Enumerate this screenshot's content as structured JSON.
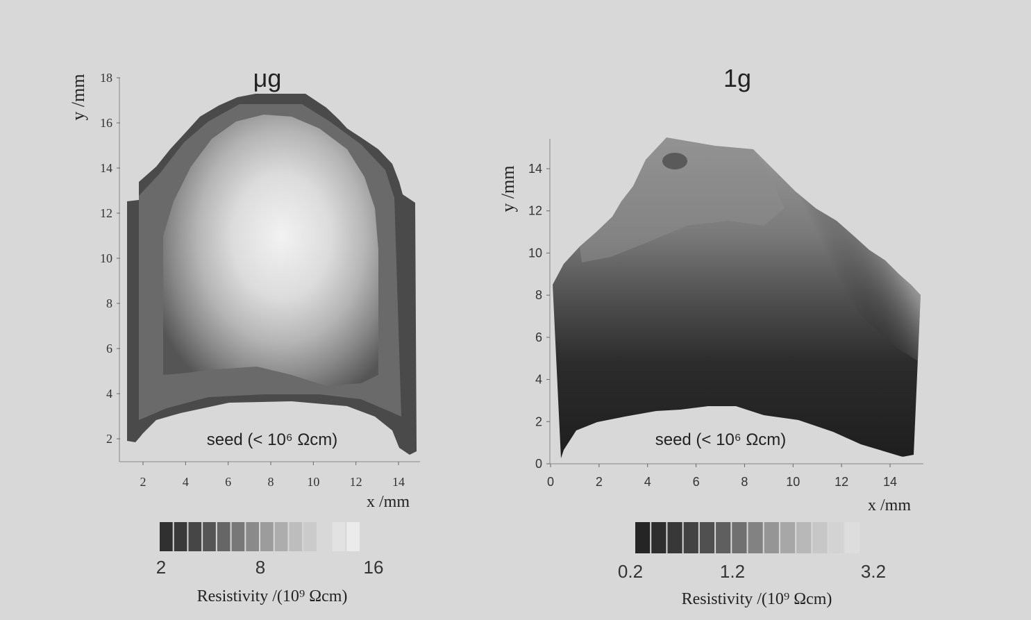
{
  "chart_data": [
    {
      "type": "heatmap",
      "title": "μg",
      "xlabel": "x /mm",
      "ylabel": "y /mm",
      "x_ticks": [
        "2",
        "4",
        "6",
        "8",
        "10",
        "12",
        "14"
      ],
      "y_ticks": [
        "2",
        "4",
        "6",
        "8",
        "10",
        "12",
        "14",
        "16",
        "18"
      ],
      "annotation": "seed (< 10⁶ Ωcm)",
      "colorbar": {
        "label": "Resistivity /(10⁹ Ωcm)",
        "ticks": [
          "2",
          "8",
          "16"
        ],
        "range": [
          2,
          16
        ],
        "levels": 14
      },
      "shades": [
        "#303030",
        "#3a3a3a",
        "#464646",
        "#555555",
        "#666666",
        "#787878",
        "#8a8a8a",
        "#9c9c9c",
        "#adadad",
        "#bdbdbd",
        "#cbcbcb",
        "#d8d8d8",
        "#e2e2e2",
        "#ebebeb"
      ]
    },
    {
      "type": "heatmap",
      "title": "1g",
      "xlabel": "x /mm",
      "ylabel": "y /mm",
      "x_ticks": [
        "0",
        "2",
        "4",
        "6",
        "8",
        "10",
        "12",
        "14"
      ],
      "y_ticks": [
        "0",
        "2",
        "4",
        "6",
        "8",
        "10",
        "12",
        "14"
      ],
      "annotation": "seed (< 10⁶ Ωcm)",
      "colorbar": {
        "label": "Resistivity /(10⁹ Ωcm)",
        "ticks": [
          "0.2",
          "1.2",
          "3.2"
        ],
        "range": [
          0.2,
          3.2
        ],
        "levels": 14
      },
      "shades": [
        "#252525",
        "#2e2e2e",
        "#383838",
        "#434343",
        "#505050",
        "#5f5f5f",
        "#707070",
        "#828282",
        "#959595",
        "#a7a7a7",
        "#b8b8b8",
        "#c7c7c7",
        "#d3d3d3",
        "#dddddd"
      ]
    }
  ]
}
